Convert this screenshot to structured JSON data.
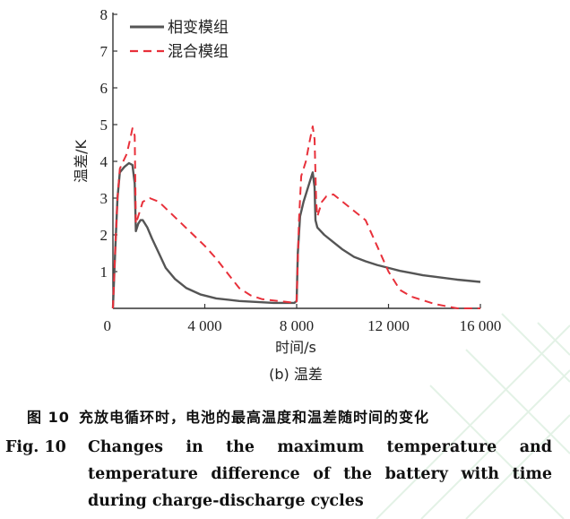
{
  "chart_data": {
    "type": "line",
    "panel_label": "(b) 温差",
    "xlabel": "时间/s",
    "ylabel": "温差/K",
    "xlim": [
      0,
      16000
    ],
    "ylim": [
      0,
      8
    ],
    "xticks": [
      "0",
      "4 000",
      "8 000",
      "12 000",
      "16 000"
    ],
    "xtick_values": [
      0,
      4000,
      8000,
      12000,
      16000
    ],
    "yticks": [
      "1",
      "2",
      "3",
      "4",
      "5",
      "6",
      "7",
      "8"
    ],
    "ytick_values": [
      1,
      2,
      3,
      4,
      5,
      6,
      7,
      8
    ],
    "legend_position": "top-left",
    "series": [
      {
        "name": "相变模组",
        "style": "solid",
        "color": "#555555",
        "points": [
          [
            0,
            0
          ],
          [
            100,
            1.6
          ],
          [
            200,
            3.0
          ],
          [
            300,
            3.7
          ],
          [
            500,
            3.85
          ],
          [
            700,
            3.95
          ],
          [
            850,
            3.9
          ],
          [
            950,
            3.4
          ],
          [
            1000,
            2.1
          ],
          [
            1100,
            2.3
          ],
          [
            1200,
            2.4
          ],
          [
            1300,
            2.4
          ],
          [
            1500,
            2.2
          ],
          [
            1700,
            1.9
          ],
          [
            2000,
            1.5
          ],
          [
            2300,
            1.1
          ],
          [
            2700,
            0.8
          ],
          [
            3200,
            0.55
          ],
          [
            3800,
            0.38
          ],
          [
            4500,
            0.27
          ],
          [
            5500,
            0.2
          ],
          [
            7000,
            0.15
          ],
          [
            7900,
            0.15
          ],
          [
            8000,
            0.2
          ],
          [
            8050,
            1.5
          ],
          [
            8150,
            2.5
          ],
          [
            8300,
            2.9
          ],
          [
            8500,
            3.3
          ],
          [
            8700,
            3.7
          ],
          [
            8780,
            3.3
          ],
          [
            8820,
            2.4
          ],
          [
            8900,
            2.2
          ],
          [
            9200,
            2.0
          ],
          [
            9600,
            1.8
          ],
          [
            10000,
            1.6
          ],
          [
            10500,
            1.4
          ],
          [
            11000,
            1.28
          ],
          [
            11500,
            1.18
          ],
          [
            12000,
            1.1
          ],
          [
            12500,
            1.02
          ],
          [
            13000,
            0.96
          ],
          [
            13500,
            0.9
          ],
          [
            14000,
            0.86
          ],
          [
            15000,
            0.78
          ],
          [
            16000,
            0.72
          ]
        ]
      },
      {
        "name": "混合模组",
        "style": "dashed",
        "color": "#e8303a",
        "points": [
          [
            0,
            0
          ],
          [
            100,
            1.6
          ],
          [
            200,
            3.0
          ],
          [
            300,
            3.8
          ],
          [
            450,
            4.0
          ],
          [
            600,
            4.2
          ],
          [
            750,
            4.6
          ],
          [
            850,
            4.9
          ],
          [
            950,
            4.7
          ],
          [
            1000,
            2.3
          ],
          [
            1100,
            2.5
          ],
          [
            1300,
            2.9
          ],
          [
            1600,
            3.0
          ],
          [
            2000,
            2.9
          ],
          [
            2500,
            2.6
          ],
          [
            3000,
            2.3
          ],
          [
            3500,
            2.0
          ],
          [
            4000,
            1.7
          ],
          [
            4500,
            1.35
          ],
          [
            5000,
            0.95
          ],
          [
            5500,
            0.55
          ],
          [
            6000,
            0.35
          ],
          [
            6500,
            0.25
          ],
          [
            7500,
            0.18
          ],
          [
            7950,
            0.15
          ],
          [
            8000,
            0.2
          ],
          [
            8100,
            2.4
          ],
          [
            8200,
            3.6
          ],
          [
            8400,
            4.0
          ],
          [
            8550,
            4.5
          ],
          [
            8700,
            4.95
          ],
          [
            8780,
            4.6
          ],
          [
            8850,
            2.9
          ],
          [
            8900,
            2.5
          ],
          [
            9100,
            2.9
          ],
          [
            9300,
            3.05
          ],
          [
            9600,
            3.1
          ],
          [
            10000,
            2.9
          ],
          [
            10500,
            2.65
          ],
          [
            11000,
            2.4
          ],
          [
            11500,
            1.7
          ],
          [
            12000,
            1.0
          ],
          [
            12500,
            0.5
          ],
          [
            13000,
            0.32
          ],
          [
            14000,
            0.12
          ],
          [
            15000,
            0.0
          ],
          [
            16000,
            0.0
          ]
        ]
      }
    ]
  },
  "caption": {
    "cn_number": "图 10",
    "cn_text": "充放电循环时，电池的最高温度和温差随时间的变化",
    "en_number": "Fig. 10",
    "en_text": "Changes in the maximum temperature and temperature difference of the battery with time during charge-discharge cycles"
  }
}
